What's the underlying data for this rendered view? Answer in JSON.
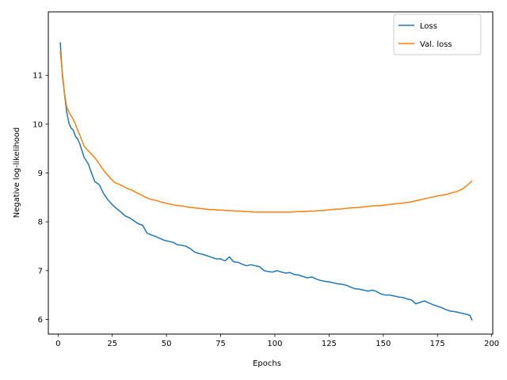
{
  "chart_data": {
    "type": "line",
    "title": "",
    "xlabel": "Epochs",
    "ylabel": "Negative log-likelihood",
    "xlim": [
      -4.5,
      200.5
    ],
    "ylim": [
      5.7,
      12.3
    ],
    "xticks": [
      0,
      25,
      50,
      75,
      100,
      125,
      150,
      175,
      200
    ],
    "yticks": [
      6,
      7,
      8,
      9,
      10,
      11
    ],
    "grid": false,
    "legend_position": "top-right",
    "series": [
      {
        "name": "Loss",
        "color": "#1f77b4",
        "points": [
          [
            1,
            11.68
          ],
          [
            2,
            11.0
          ],
          [
            3,
            10.6
          ],
          [
            4,
            10.25
          ],
          [
            5,
            10.02
          ],
          [
            6,
            9.92
          ],
          [
            7,
            9.88
          ],
          [
            8,
            9.75
          ],
          [
            9,
            9.7
          ],
          [
            10,
            9.6
          ],
          [
            12,
            9.32
          ],
          [
            14,
            9.18
          ],
          [
            15,
            9.05
          ],
          [
            17,
            8.82
          ],
          [
            19,
            8.76
          ],
          [
            21,
            8.58
          ],
          [
            23,
            8.45
          ],
          [
            25,
            8.35
          ],
          [
            27,
            8.27
          ],
          [
            29,
            8.2
          ],
          [
            31,
            8.12
          ],
          [
            33,
            8.08
          ],
          [
            35,
            8.02
          ],
          [
            37,
            7.96
          ],
          [
            39,
            7.93
          ],
          [
            41,
            7.77
          ],
          [
            43,
            7.73
          ],
          [
            45,
            7.7
          ],
          [
            47,
            7.66
          ],
          [
            49,
            7.62
          ],
          [
            51,
            7.6
          ],
          [
            53,
            7.58
          ],
          [
            55,
            7.53
          ],
          [
            57,
            7.52
          ],
          [
            59,
            7.5
          ],
          [
            61,
            7.45
          ],
          [
            63,
            7.38
          ],
          [
            65,
            7.35
          ],
          [
            67,
            7.33
          ],
          [
            69,
            7.3
          ],
          [
            71,
            7.27
          ],
          [
            73,
            7.24
          ],
          [
            75,
            7.24
          ],
          [
            77,
            7.2
          ],
          [
            79,
            7.28
          ],
          [
            81,
            7.18
          ],
          [
            83,
            7.17
          ],
          [
            85,
            7.13
          ],
          [
            87,
            7.1
          ],
          [
            89,
            7.12
          ],
          [
            91,
            7.1
          ],
          [
            93,
            7.08
          ],
          [
            95,
            7.0
          ],
          [
            97,
            6.98
          ],
          [
            99,
            6.97
          ],
          [
            101,
            7.0
          ],
          [
            103,
            6.97
          ],
          [
            105,
            6.95
          ],
          [
            107,
            6.96
          ],
          [
            109,
            6.92
          ],
          [
            111,
            6.91
          ],
          [
            113,
            6.88
          ],
          [
            115,
            6.85
          ],
          [
            117,
            6.87
          ],
          [
            119,
            6.83
          ],
          [
            121,
            6.8
          ],
          [
            123,
            6.78
          ],
          [
            125,
            6.77
          ],
          [
            127,
            6.75
          ],
          [
            129,
            6.73
          ],
          [
            131,
            6.72
          ],
          [
            133,
            6.7
          ],
          [
            135,
            6.66
          ],
          [
            137,
            6.63
          ],
          [
            139,
            6.62
          ],
          [
            141,
            6.6
          ],
          [
            143,
            6.58
          ],
          [
            145,
            6.6
          ],
          [
            147,
            6.57
          ],
          [
            149,
            6.52
          ],
          [
            151,
            6.5
          ],
          [
            153,
            6.5
          ],
          [
            155,
            6.48
          ],
          [
            157,
            6.46
          ],
          [
            159,
            6.45
          ],
          [
            161,
            6.42
          ],
          [
            163,
            6.4
          ],
          [
            165,
            6.32
          ],
          [
            167,
            6.35
          ],
          [
            169,
            6.38
          ],
          [
            171,
            6.34
          ],
          [
            173,
            6.3
          ],
          [
            175,
            6.27
          ],
          [
            177,
            6.24
          ],
          [
            179,
            6.2
          ],
          [
            181,
            6.17
          ],
          [
            183,
            6.16
          ],
          [
            185,
            6.14
          ],
          [
            187,
            6.12
          ],
          [
            189,
            6.1
          ],
          [
            190,
            6.08
          ],
          [
            191,
            5.98
          ]
        ]
      },
      {
        "name": "Val. loss",
        "color": "#ff7f0e",
        "points": [
          [
            1,
            11.5
          ],
          [
            2,
            11.05
          ],
          [
            3,
            10.62
          ],
          [
            4,
            10.35
          ],
          [
            5,
            10.25
          ],
          [
            6,
            10.17
          ],
          [
            7,
            10.1
          ],
          [
            8,
            10.0
          ],
          [
            9,
            9.88
          ],
          [
            10,
            9.78
          ],
          [
            12,
            9.55
          ],
          [
            14,
            9.45
          ],
          [
            16,
            9.36
          ],
          [
            18,
            9.25
          ],
          [
            20,
            9.12
          ],
          [
            22,
            9.0
          ],
          [
            24,
            8.9
          ],
          [
            26,
            8.81
          ],
          [
            28,
            8.77
          ],
          [
            30,
            8.73
          ],
          [
            32,
            8.68
          ],
          [
            34,
            8.65
          ],
          [
            36,
            8.6
          ],
          [
            38,
            8.56
          ],
          [
            40,
            8.51
          ],
          [
            42,
            8.47
          ],
          [
            44,
            8.45
          ],
          [
            46,
            8.43
          ],
          [
            48,
            8.4
          ],
          [
            50,
            8.38
          ],
          [
            52,
            8.36
          ],
          [
            54,
            8.34
          ],
          [
            56,
            8.33
          ],
          [
            58,
            8.32
          ],
          [
            60,
            8.3
          ],
          [
            62,
            8.29
          ],
          [
            64,
            8.28
          ],
          [
            66,
            8.27
          ],
          [
            68,
            8.26
          ],
          [
            70,
            8.25
          ],
          [
            72,
            8.25
          ],
          [
            74,
            8.24
          ],
          [
            76,
            8.24
          ],
          [
            78,
            8.23
          ],
          [
            80,
            8.23
          ],
          [
            82,
            8.22
          ],
          [
            84,
            8.22
          ],
          [
            86,
            8.21
          ],
          [
            88,
            8.21
          ],
          [
            90,
            8.2
          ],
          [
            92,
            8.2
          ],
          [
            94,
            8.2
          ],
          [
            96,
            8.2
          ],
          [
            98,
            8.2
          ],
          [
            100,
            8.2
          ],
          [
            102,
            8.2
          ],
          [
            104,
            8.2
          ],
          [
            106,
            8.2
          ],
          [
            108,
            8.2
          ],
          [
            110,
            8.21
          ],
          [
            112,
            8.21
          ],
          [
            114,
            8.21
          ],
          [
            116,
            8.22
          ],
          [
            118,
            8.22
          ],
          [
            120,
            8.23
          ],
          [
            122,
            8.23
          ],
          [
            124,
            8.24
          ],
          [
            126,
            8.25
          ],
          [
            128,
            8.26
          ],
          [
            130,
            8.26
          ],
          [
            132,
            8.27
          ],
          [
            134,
            8.28
          ],
          [
            136,
            8.29
          ],
          [
            138,
            8.29
          ],
          [
            140,
            8.3
          ],
          [
            142,
            8.31
          ],
          [
            144,
            8.32
          ],
          [
            146,
            8.33
          ],
          [
            148,
            8.33
          ],
          [
            150,
            8.34
          ],
          [
            152,
            8.35
          ],
          [
            154,
            8.36
          ],
          [
            156,
            8.37
          ],
          [
            158,
            8.38
          ],
          [
            160,
            8.39
          ],
          [
            162,
            8.4
          ],
          [
            164,
            8.42
          ],
          [
            166,
            8.44
          ],
          [
            168,
            8.46
          ],
          [
            170,
            8.48
          ],
          [
            172,
            8.5
          ],
          [
            174,
            8.52
          ],
          [
            176,
            8.54
          ],
          [
            178,
            8.55
          ],
          [
            180,
            8.57
          ],
          [
            182,
            8.6
          ],
          [
            184,
            8.62
          ],
          [
            186,
            8.66
          ],
          [
            188,
            8.72
          ],
          [
            190,
            8.8
          ],
          [
            191,
            8.84
          ]
        ]
      }
    ]
  }
}
